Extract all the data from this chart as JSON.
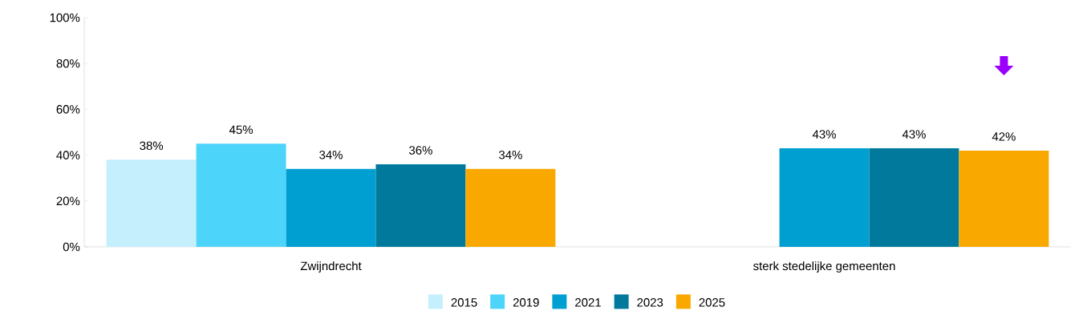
{
  "chart_data": {
    "type": "bar",
    "categories": [
      "Zwijndrecht",
      "sterk stedelijke gemeenten"
    ],
    "series": [
      {
        "name": "2015",
        "color": "#c5effd",
        "values": [
          38,
          null
        ],
        "value_labels": [
          "38%",
          null
        ]
      },
      {
        "name": "2019",
        "color": "#4dd4fb",
        "values": [
          45,
          null
        ],
        "value_labels": [
          "45%",
          null
        ]
      },
      {
        "name": "2021",
        "color": "#009fd1",
        "values": [
          34,
          43
        ],
        "value_labels": [
          "34%",
          "43%"
        ]
      },
      {
        "name": "2023",
        "color": "#00799c",
        "values": [
          36,
          43
        ],
        "value_labels": [
          "36%",
          "43%"
        ]
      },
      {
        "name": "2025",
        "color": "#f9a800",
        "values": [
          34,
          42
        ],
        "value_labels": [
          "34%",
          "42%"
        ]
      }
    ],
    "ylim": [
      0,
      100
    ],
    "yticks": [
      {
        "value": 0,
        "label": "0%"
      },
      {
        "value": 20,
        "label": "20%"
      },
      {
        "value": 40,
        "label": "40%"
      },
      {
        "value": 60,
        "label": "60%"
      },
      {
        "value": 80,
        "label": "80%"
      },
      {
        "value": 100,
        "label": "100%"
      }
    ],
    "grid": false,
    "legend": "bottom"
  }
}
